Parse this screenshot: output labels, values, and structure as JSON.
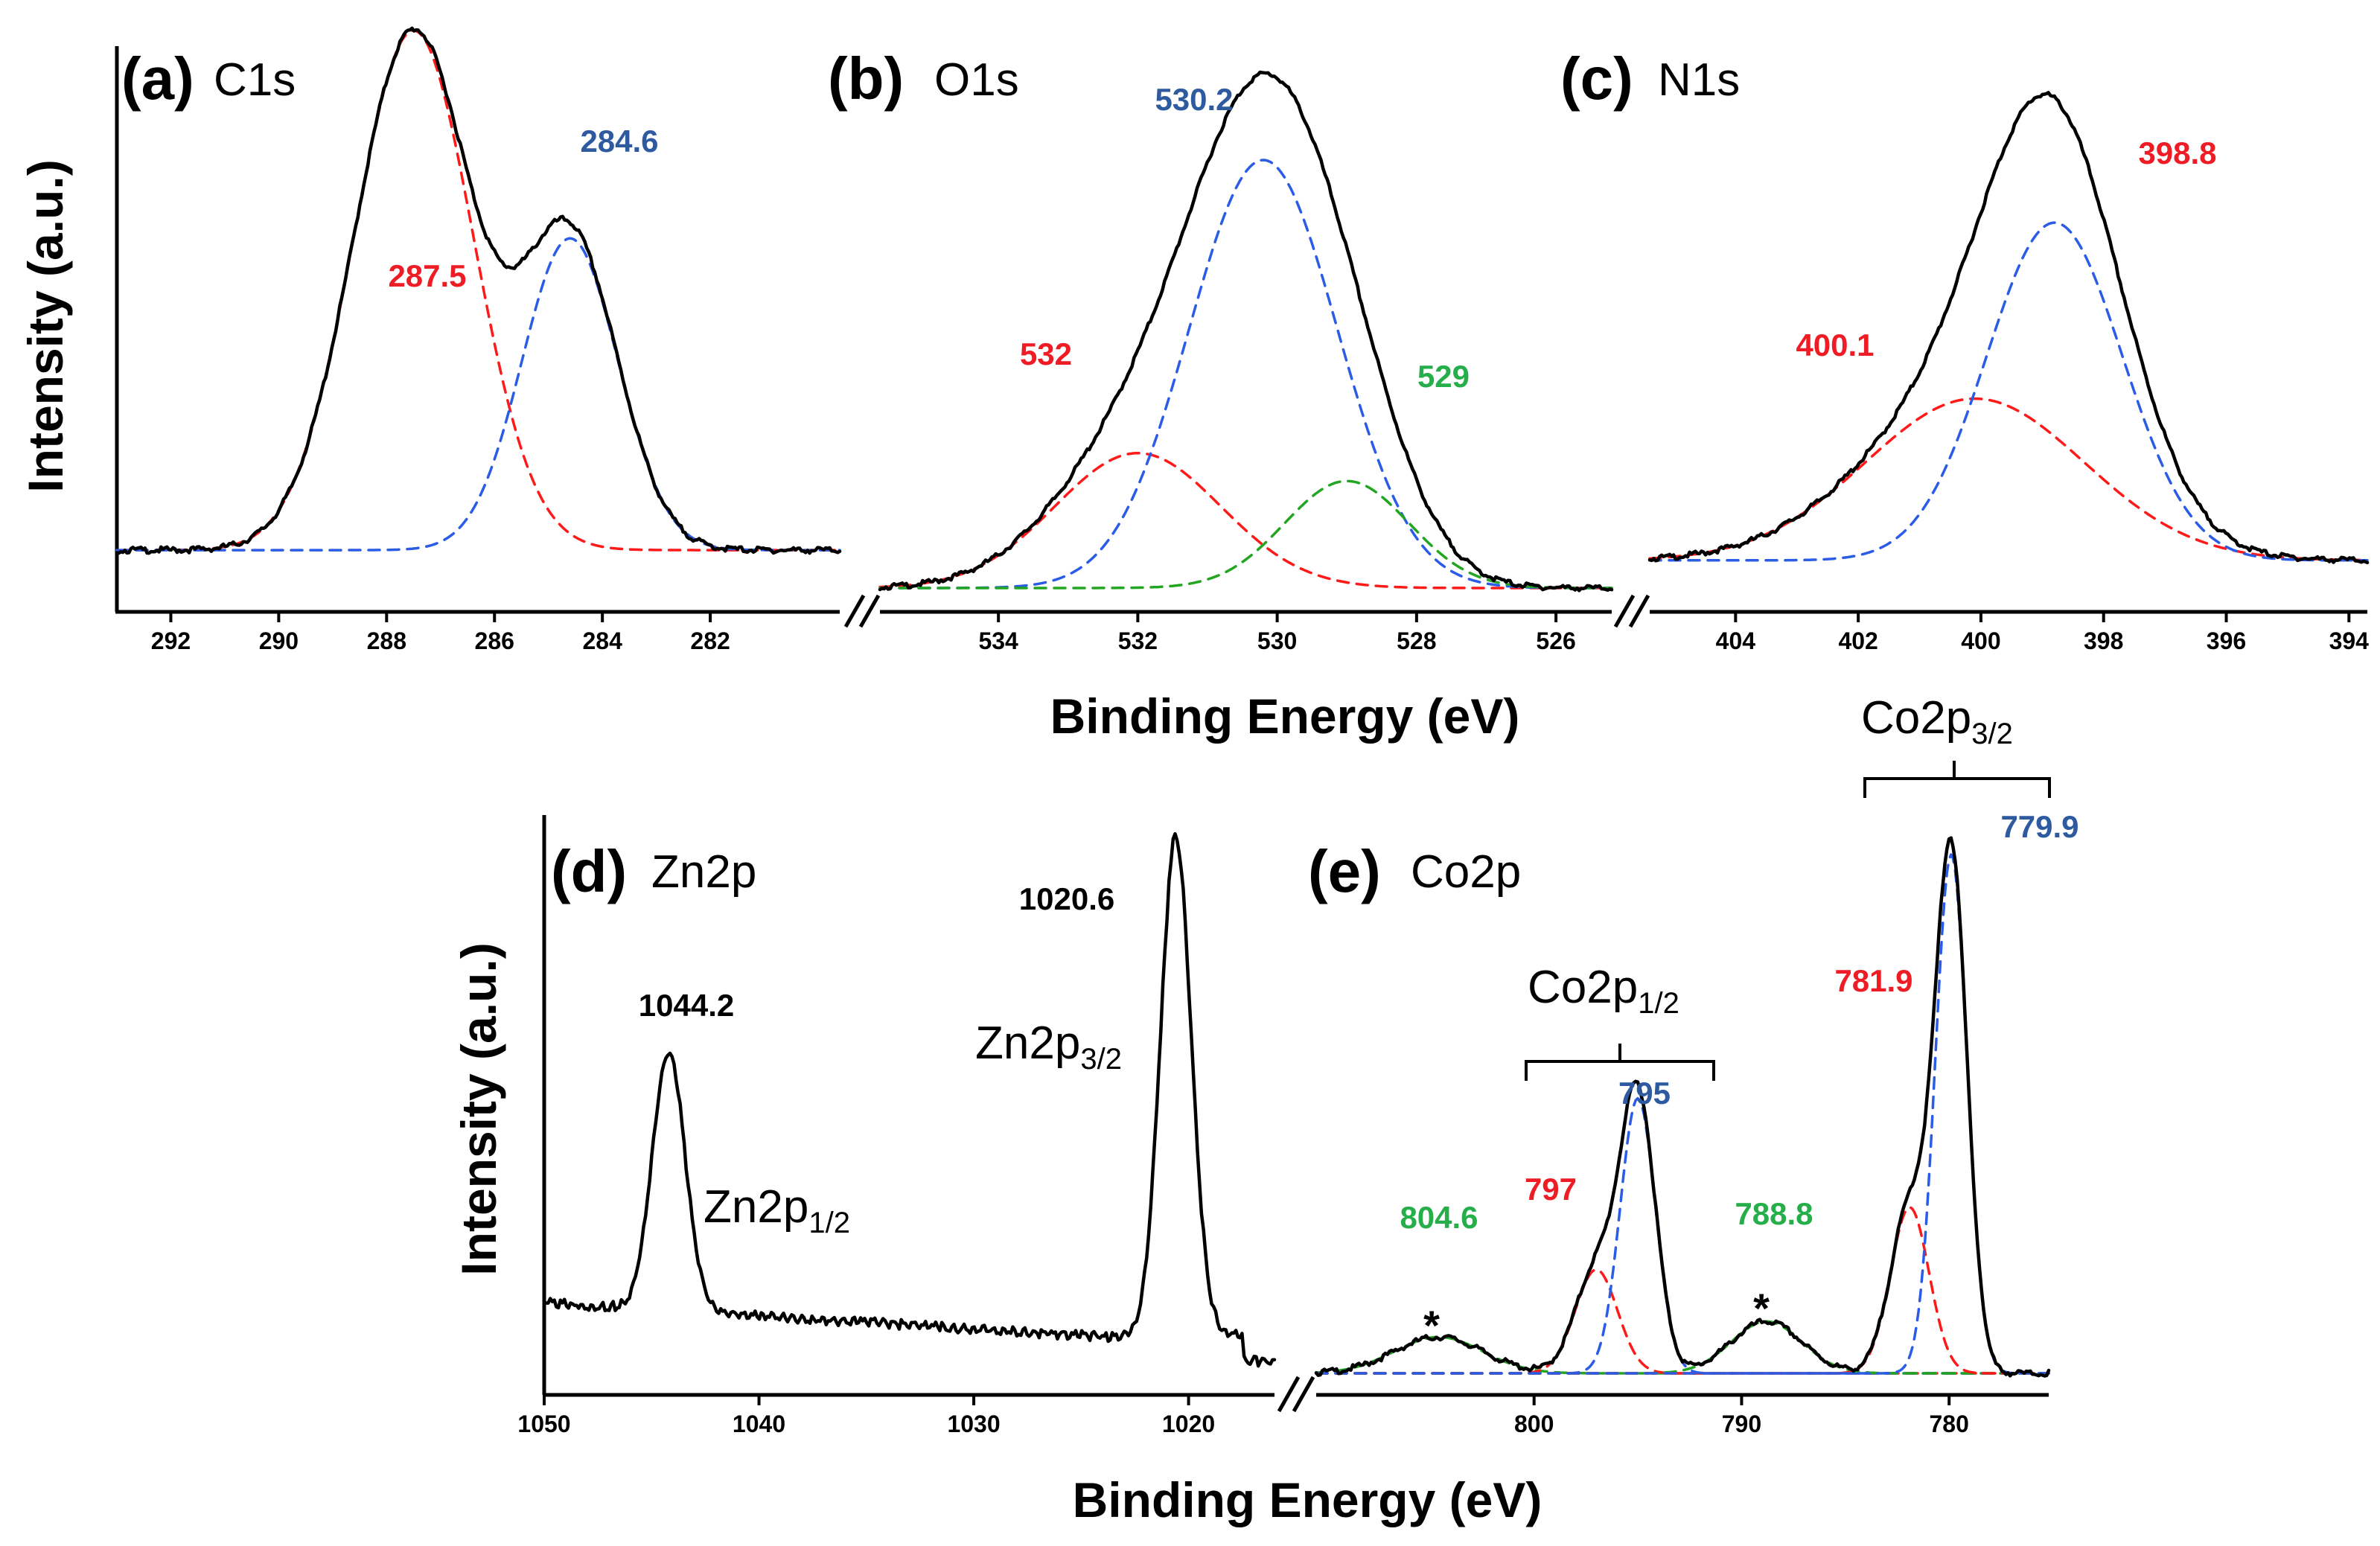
{
  "colors": {
    "envelope": "#000000",
    "red": "#ff1a1a",
    "blue": "#2a5ce6",
    "green": "#22a622",
    "blue_label": "#2e5aa0",
    "red_label": "#ee1c24",
    "green_label": "#25ae4a"
  },
  "top": {
    "y_axis_title": "Intensity (a.u.)",
    "x_axis_title": "Binding Energy (eV)",
    "panels": [
      {
        "letter": "(a)",
        "name": "C1s"
      },
      {
        "letter": "(b)",
        "name": "O1s"
      },
      {
        "letter": "(c)",
        "name": "N1s"
      }
    ]
  },
  "bottom": {
    "y_axis_title": "Intensity (a.u.)",
    "x_axis_title": "Binding Energy (eV)",
    "panels": [
      {
        "letter": "(d)",
        "name": "Zn2p"
      },
      {
        "letter": "(e)",
        "name": "Co2p"
      }
    ],
    "orbitals": {
      "zn_p32_main": "Zn2p",
      "zn_p32_sub": "3/2",
      "zn_p12_main": "Zn2p",
      "zn_p12_sub": "1/2",
      "co_p12_main": "Co2p",
      "co_p12_sub": "1/2",
      "co_p32_main": "Co2p",
      "co_p32_sub": "3/2"
    },
    "satellite_mark": "*"
  },
  "chart_data": [
    {
      "id": "a",
      "type": "line",
      "title": "C1s",
      "xlabel": "Binding Energy (eV)",
      "ylabel": "Intensity (a.u.)",
      "xlim": [
        293,
        279.6
      ],
      "x_reversed": true,
      "xticks": [
        292,
        290,
        288,
        286,
        284,
        282
      ],
      "baseline": 0.03,
      "components": [
        {
          "color": "red",
          "center": 287.5,
          "fwhm": 2.6,
          "height": 1.0,
          "label": "287.5"
        },
        {
          "color": "blue",
          "center": 284.6,
          "fwhm": 2.1,
          "height": 0.6,
          "label": "284.6"
        }
      ],
      "labels": [
        "287.5",
        "284.6"
      ]
    },
    {
      "id": "b",
      "type": "line",
      "title": "O1s",
      "xlabel": "Binding Energy (eV)",
      "ylabel": "Intensity (a.u.)",
      "xlim": [
        535.7,
        525.2
      ],
      "x_reversed": true,
      "xticks": [
        534,
        532,
        530,
        528,
        526
      ],
      "baseline": 0.0,
      "components": [
        {
          "color": "red",
          "center": 532.0,
          "fwhm": 2.8,
          "height": 0.29,
          "label": "532"
        },
        {
          "color": "blue",
          "center": 530.2,
          "fwhm": 2.5,
          "height": 0.92,
          "label": "530.2"
        },
        {
          "color": "green",
          "center": 529.0,
          "fwhm": 2.1,
          "height": 0.23,
          "label": "529"
        }
      ],
      "labels": [
        "532",
        "530.2",
        "529"
      ]
    },
    {
      "id": "c",
      "type": "line",
      "title": "N1s",
      "xlabel": "Binding Energy (eV)",
      "ylabel": "Intensity (a.u.)",
      "xlim": [
        405.4,
        393.7
      ],
      "x_reversed": true,
      "xticks": [
        404,
        402,
        400,
        398,
        396,
        394
      ],
      "baseline": 0.03,
      "components": [
        {
          "color": "red",
          "center": 400.1,
          "fwhm": 4.2,
          "height": 0.34,
          "label": "400.1"
        },
        {
          "color": "blue",
          "center": 398.8,
          "fwhm": 2.6,
          "height": 0.71,
          "label": "398.8"
        }
      ],
      "labels": [
        "400.1",
        "398.8"
      ]
    },
    {
      "id": "d",
      "type": "line",
      "title": "Zn2p",
      "xlabel": "Binding Energy (eV)",
      "ylabel": "Intensity (a.u.)",
      "xlim": [
        1050,
        1016
      ],
      "x_reversed": true,
      "xticks": [
        1050,
        1040,
        1030,
        1020
      ],
      "peaks": [
        {
          "center": 1044.2,
          "fwhm": 1.8,
          "height": 0.52,
          "label": "1044.2",
          "orbital": "Zn2p1/2"
        },
        {
          "center": 1020.6,
          "fwhm": 1.7,
          "height": 1.0,
          "label": "1020.6",
          "orbital": "Zn2p3/2"
        }
      ],
      "labels": [
        "1044.2",
        "1020.6"
      ]
    },
    {
      "id": "e",
      "type": "line",
      "title": "Co2p",
      "xlabel": "Binding Energy (eV)",
      "ylabel": "Intensity (a.u.)",
      "xlim": [
        810.5,
        775.2
      ],
      "x_reversed": true,
      "xticks": [
        800,
        790,
        780
      ],
      "baseline": 0.01,
      "components": [
        {
          "color": "green",
          "center": 804.6,
          "fwhm": 5.0,
          "height": 0.07,
          "label": "804.6"
        },
        {
          "color": "red",
          "center": 797.0,
          "fwhm": 2.4,
          "height": 0.2,
          "label": "797"
        },
        {
          "color": "blue",
          "center": 795.0,
          "fwhm": 2.0,
          "height": 0.53,
          "label": "795"
        },
        {
          "color": "green",
          "center": 788.8,
          "fwhm": 4.0,
          "height": 0.1,
          "label": "788.8"
        },
        {
          "color": "red",
          "center": 781.9,
          "fwhm": 2.2,
          "height": 0.32,
          "label": "781.9"
        },
        {
          "color": "blue",
          "center": 779.9,
          "fwhm": 1.8,
          "height": 1.0,
          "label": "779.9"
        }
      ],
      "labels": [
        "804.6",
        "797",
        "795",
        "788.8",
        "781.9",
        "779.9"
      ]
    }
  ]
}
